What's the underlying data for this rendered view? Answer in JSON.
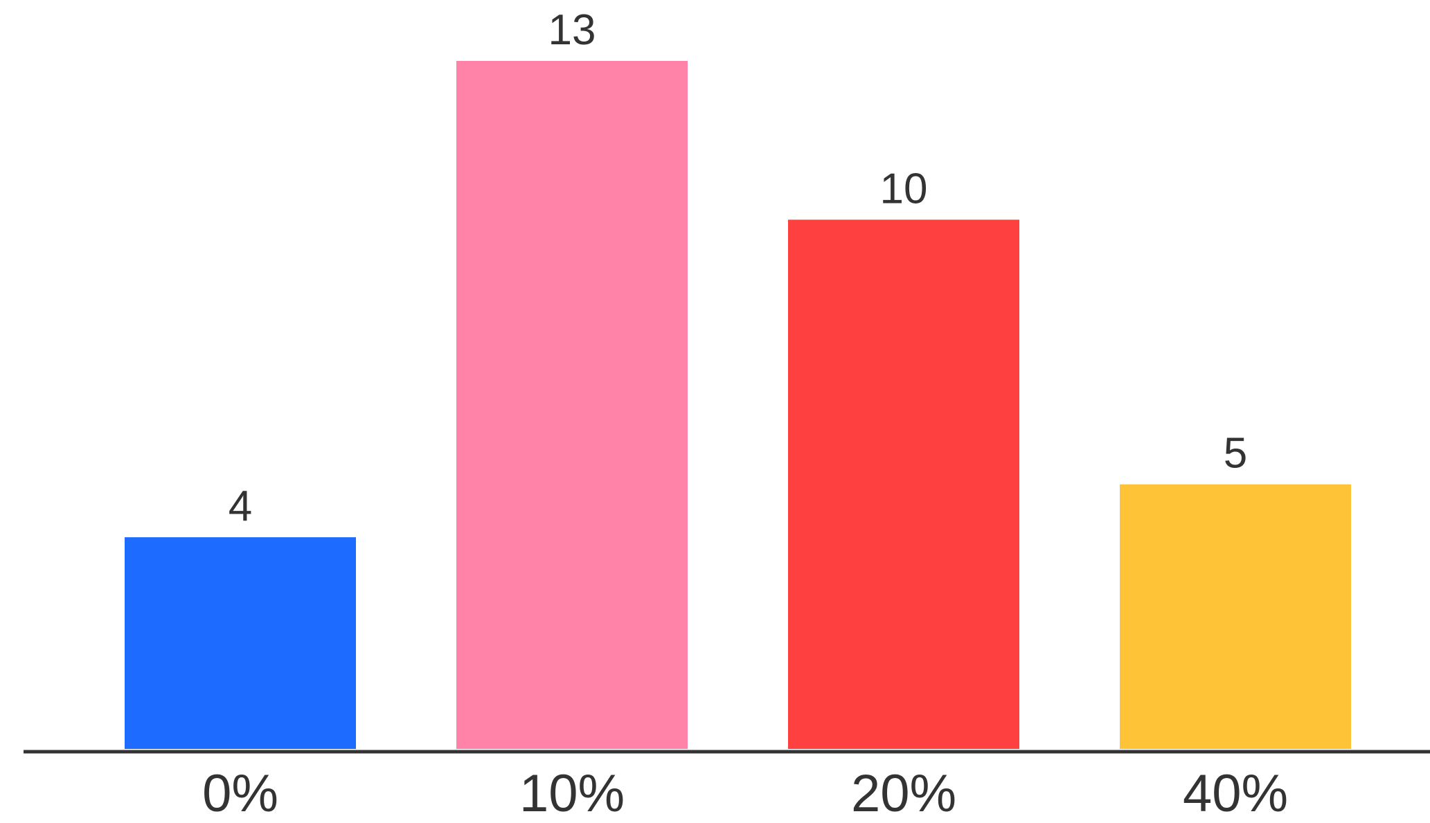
{
  "chart_data": {
    "type": "bar",
    "categories": [
      "0%",
      "10%",
      "20%",
      "40%"
    ],
    "values": [
      4,
      13,
      10,
      5
    ],
    "colors": [
      "#1E6BFF",
      "#FF82A9",
      "#FF4040",
      "#FFC337"
    ],
    "title": "",
    "xlabel": "",
    "ylabel": "",
    "ylim": [
      0,
      13
    ],
    "value_labels": [
      "4",
      "13",
      "10",
      "5"
    ],
    "grid": false,
    "legend": "none",
    "axis_line_color": "#333333"
  }
}
